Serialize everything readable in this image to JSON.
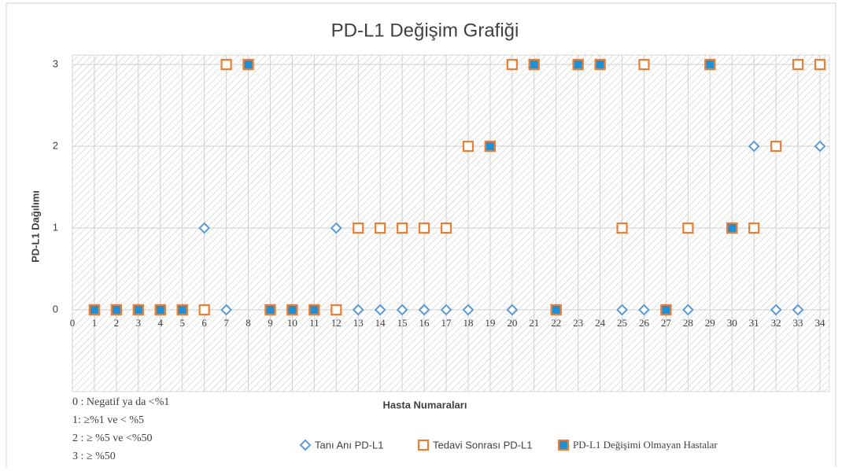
{
  "chart_data": {
    "type": "scatter",
    "title": "PD-L1 Değişim Grafiği",
    "x_label": "Hasta Numaraları",
    "y_label": "PD-L1  Dağılımı",
    "xlim": [
      0,
      34
    ],
    "xticks": [
      0,
      1,
      2,
      3,
      4,
      5,
      6,
      7,
      8,
      9,
      10,
      11,
      12,
      13,
      14,
      15,
      16,
      17,
      18,
      19,
      20,
      21,
      22,
      23,
      24,
      25,
      26,
      27,
      28,
      29,
      30,
      31,
      32,
      33,
      34
    ],
    "ylim": [
      -1,
      3
    ],
    "yticks": [
      0,
      1,
      2,
      3
    ],
    "grid": true,
    "legend": "bottom",
    "series": [
      {
        "name": "Tanı Anı PD-L1",
        "marker": "diamond",
        "color": "#5b9bd5",
        "x": [
          1,
          2,
          3,
          4,
          5,
          6,
          7,
          8,
          9,
          10,
          11,
          12,
          13,
          14,
          15,
          16,
          17,
          18,
          19,
          20,
          21,
          22,
          23,
          24,
          25,
          26,
          27,
          28,
          29,
          30,
          31,
          32,
          33,
          34
        ],
        "values": [
          0,
          0,
          0,
          0,
          0,
          1,
          0,
          3,
          0,
          0,
          0,
          1,
          0,
          0,
          0,
          0,
          0,
          0,
          2,
          0,
          3,
          0,
          3,
          3,
          0,
          0,
          0,
          0,
          3,
          1,
          2,
          0,
          0,
          2
        ]
      },
      {
        "name": "Tedavi Sonrası PD-L1",
        "marker": "square",
        "color": "#ed7d31",
        "x": [
          1,
          2,
          3,
          4,
          5,
          6,
          7,
          8,
          9,
          10,
          11,
          12,
          13,
          14,
          15,
          16,
          17,
          18,
          19,
          20,
          21,
          22,
          23,
          24,
          25,
          26,
          27,
          28,
          29,
          30,
          31,
          32,
          33,
          34
        ],
        "values": [
          0,
          0,
          0,
          0,
          0,
          0,
          3,
          3,
          0,
          0,
          0,
          0,
          1,
          1,
          1,
          1,
          1,
          2,
          2,
          3,
          3,
          0,
          3,
          3,
          1,
          3,
          0,
          1,
          3,
          1,
          1,
          2,
          3,
          3
        ]
      },
      {
        "name": "PD-L1 Değişimi Olmayan Hastalar",
        "marker": "filled-square",
        "color": "#1f8fd6",
        "edgecolor": "#ed7d31",
        "x": [
          1,
          2,
          3,
          4,
          5,
          8,
          9,
          10,
          11,
          19,
          21,
          22,
          23,
          24,
          27,
          29,
          30
        ],
        "values": [
          0,
          0,
          0,
          0,
          0,
          3,
          0,
          0,
          0,
          2,
          3,
          0,
          3,
          3,
          0,
          3,
          1
        ]
      }
    ],
    "annotations": [
      "0 :  Negatif ya da <%1",
      "1:   ≥%1 ve < %5",
      "2 :  ≥ %5 ve <%50",
      "3 :  ≥ %50"
    ]
  }
}
